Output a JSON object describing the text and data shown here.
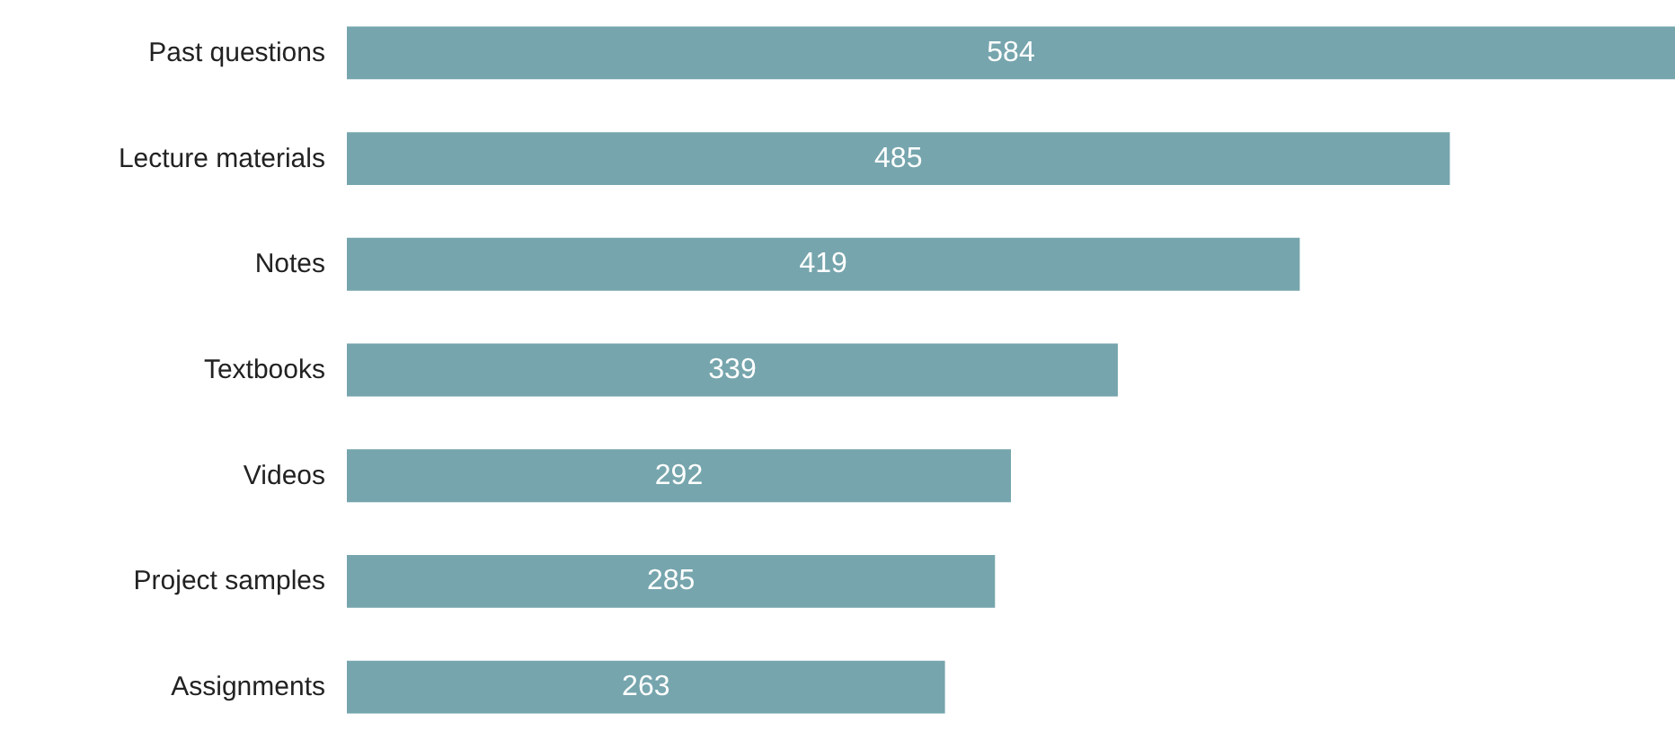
{
  "chart_data": {
    "type": "bar",
    "orientation": "horizontal",
    "categories": [
      "Past questions",
      "Lecture materials",
      "Notes",
      "Textbooks",
      "Videos",
      "Project samples",
      "Assignments"
    ],
    "values": [
      584,
      485,
      419,
      339,
      292,
      285,
      263
    ],
    "color": "#76a5ad",
    "data_labels": true
  }
}
